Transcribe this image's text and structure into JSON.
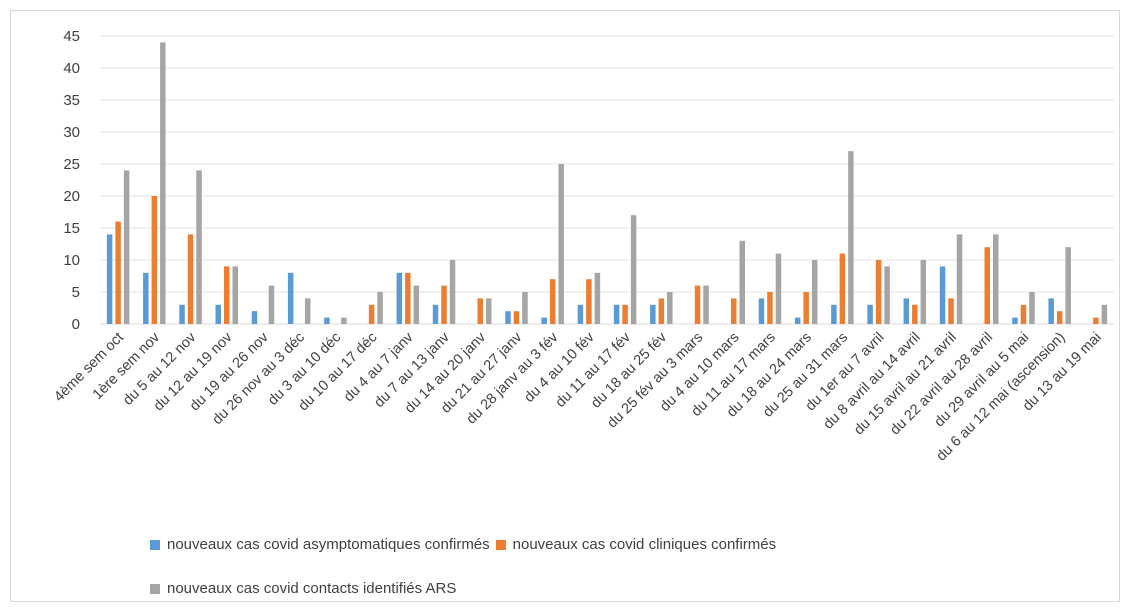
{
  "chart_data": {
    "type": "bar",
    "title": "",
    "xlabel": "",
    "ylabel": "",
    "ylim": [
      0,
      45
    ],
    "y_ticks": [
      0,
      5,
      10,
      15,
      20,
      25,
      30,
      35,
      40,
      45
    ],
    "grid": true,
    "legend_position": "bottom",
    "categories": [
      "4ème sem oct",
      "1ère sem nov",
      "du 5 au 12 nov",
      "du 12 au 19 nov",
      "du 19 au 26 nov",
      "du 26 nov au 3 déc",
      "du 3 au 10 déc",
      "du 10 au 17 déc",
      "du 4 au 7 janv",
      "du 7 au 13 janv",
      "du 14 au 20 janv",
      "du 21 au 27 janv",
      "du 28 janv au 3 fév",
      "du 4 au 10 fév",
      "du 11 au 17 fév",
      "du 18 au 25 fév",
      "du 25 fév au 3 mars",
      "du 4 au 10 mars",
      "du 11 au 17 mars",
      "du 18 au 24 mars",
      "du 25 au 31 mars",
      "du 1er au 7 avril",
      "du 8 avril au 14 avril",
      "du 15 avril au 21 avril",
      "du 22 avril au 28 avril",
      "du 29 avril au 5 mai",
      "du 6 au 12 mai (ascension)",
      "du 13 au 19 mai"
    ],
    "series": [
      {
        "name": "nouveaux cas covid asymptomatiques confirmés",
        "color": "#5b9bd5",
        "values": [
          14,
          8,
          3,
          3,
          2,
          8,
          1,
          0,
          8,
          3,
          0,
          2,
          1,
          3,
          3,
          3,
          0,
          0,
          4,
          1,
          3,
          3,
          4,
          9,
          0,
          1,
          4,
          0
        ]
      },
      {
        "name": "nouveaux cas covid cliniques confirmés",
        "color": "#ed7d31",
        "values": [
          16,
          20,
          14,
          9,
          0,
          0,
          0,
          3,
          8,
          6,
          4,
          2,
          7,
          7,
          3,
          4,
          6,
          4,
          5,
          5,
          11,
          10,
          3,
          4,
          12,
          3,
          2,
          1
        ]
      },
      {
        "name": "nouveaux cas covid contacts identifiés ARS",
        "color": "#a5a5a5",
        "values": [
          24,
          44,
          24,
          9,
          6,
          4,
          1,
          5,
          6,
          10,
          4,
          5,
          25,
          8,
          17,
          5,
          6,
          13,
          11,
          10,
          27,
          9,
          10,
          14,
          14,
          5,
          12,
          3
        ]
      }
    ]
  }
}
